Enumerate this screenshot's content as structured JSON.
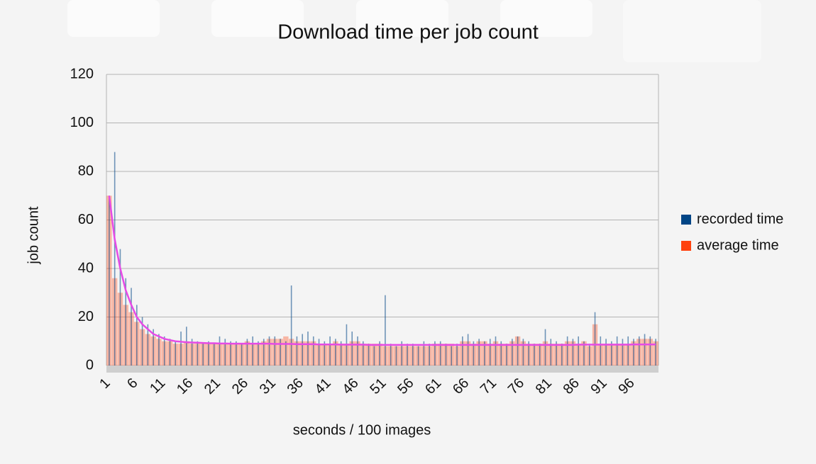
{
  "chart_data": {
    "type": "bar",
    "title": "Download time per job count",
    "xlabel": "seconds / 100 images",
    "ylabel": "job count",
    "categories": [
      "1",
      null,
      null,
      null,
      null,
      "6",
      null,
      null,
      null,
      null,
      "11",
      null,
      null,
      null,
      null,
      "16",
      null,
      null,
      null,
      null,
      "21",
      null,
      null,
      null,
      null,
      "26",
      null,
      null,
      null,
      null,
      "31",
      null,
      null,
      null,
      null,
      "36",
      null,
      null,
      null,
      null,
      "41",
      null,
      null,
      null,
      null,
      "46",
      null,
      null,
      null,
      null,
      "51",
      null,
      null,
      null,
      null,
      "56",
      null,
      null,
      null,
      null,
      "61",
      null,
      null,
      null,
      null,
      "66",
      null,
      null,
      null,
      null,
      "71",
      null,
      null,
      null,
      null,
      "76",
      null,
      null,
      null,
      null,
      "81",
      null,
      null,
      null,
      null,
      "86",
      null,
      null,
      null,
      null,
      "91",
      null,
      null,
      null,
      null,
      "96",
      null,
      null,
      null,
      null
    ],
    "series": [
      {
        "name": "recorded time",
        "color": "#004586",
        "values": [
          70,
          88,
          48,
          36,
          32,
          25,
          20,
          17,
          15,
          13,
          12,
          11,
          10,
          14,
          16,
          11,
          10,
          9,
          10,
          9,
          12,
          11,
          10,
          10,
          9,
          11,
          12,
          10,
          11,
          12,
          12,
          11,
          10,
          33,
          12,
          13,
          14,
          12,
          11,
          10,
          12,
          11,
          10,
          17,
          14,
          12,
          10,
          9,
          8,
          10,
          29,
          9,
          8,
          10,
          9,
          9,
          8,
          10,
          9,
          10,
          10,
          9,
          8,
          9,
          12,
          13,
          10,
          11,
          10,
          11,
          12,
          10,
          9,
          11,
          12,
          11,
          10,
          9,
          9,
          15,
          11,
          10,
          9,
          12,
          11,
          12,
          10,
          9,
          22,
          12,
          11,
          10,
          12,
          11,
          12,
          11,
          12,
          13,
          12,
          11
        ]
      },
      {
        "name": "average time",
        "color": "#ff420e",
        "values": [
          70,
          36,
          30,
          25,
          22,
          18,
          15,
          13,
          12,
          11,
          10,
          10,
          9,
          9,
          10,
          9,
          9,
          9,
          9,
          9,
          9,
          9,
          9,
          9,
          9,
          10,
          9,
          9,
          10,
          11,
          11,
          11,
          12,
          11,
          10,
          10,
          10,
          10,
          9,
          9,
          9,
          10,
          9,
          9,
          10,
          10,
          9,
          9,
          9,
          9,
          8,
          8,
          8,
          8,
          8,
          8,
          8,
          8,
          8,
          9,
          9,
          9,
          9,
          8,
          10,
          10,
          9,
          10,
          10,
          9,
          10,
          9,
          9,
          10,
          12,
          10,
          9,
          9,
          9,
          10,
          9,
          9,
          9,
          10,
          10,
          9,
          10,
          8,
          17,
          9,
          9,
          9,
          9,
          9,
          9,
          10,
          11,
          11,
          11,
          10
        ]
      }
    ],
    "trendline": {
      "color": "#e64ae6",
      "values": [
        70,
        52,
        40,
        31,
        25,
        20,
        17,
        15,
        13,
        12,
        11,
        10.5,
        10,
        9.8,
        9.6,
        9.5,
        9.4,
        9.3,
        9.2,
        9.2,
        9.1,
        9.1,
        9,
        9,
        9,
        9,
        9,
        9,
        9,
        9,
        8.9,
        8.9,
        8.9,
        8.9,
        8.8,
        8.8,
        8.8,
        8.8,
        8.7,
        8.7,
        8.7,
        8.7,
        8.6,
        8.6,
        8.6,
        8.6,
        8.6,
        8.5,
        8.5,
        8.5,
        8.5,
        8.5,
        8.5,
        8.5,
        8.5,
        8.5,
        8.5,
        8.5,
        8.5,
        8.5,
        8.5,
        8.5,
        8.5,
        8.5,
        8.5,
        8.5,
        8.5,
        8.5,
        8.5,
        8.5,
        8.5,
        8.5,
        8.5,
        8.5,
        8.5,
        8.5,
        8.5,
        8.5,
        8.5,
        8.5,
        8.5,
        8.5,
        8.5,
        8.5,
        8.5,
        8.6,
        8.6,
        8.6,
        8.6,
        8.6,
        8.6,
        8.6,
        8.6,
        8.6,
        8.6,
        8.7,
        8.7,
        8.7,
        8.7,
        8.7
      ]
    },
    "ylim": [
      0,
      120
    ],
    "yticks": [
      0,
      20,
      40,
      60,
      80,
      100,
      120
    ],
    "grid": true,
    "legend": "right"
  }
}
